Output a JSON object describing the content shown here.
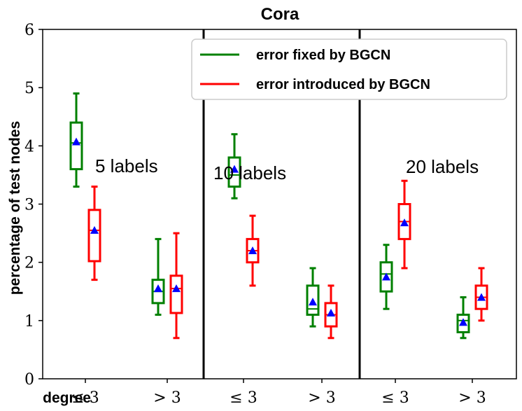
{
  "chart_data": {
    "type": "box",
    "title": "Cora",
    "xlabel_prefix": "degree",
    "ylabel": "percentage of test nodes",
    "ylim": [
      0,
      6
    ],
    "yticks": [
      0,
      1,
      2,
      3,
      4,
      5,
      6
    ],
    "grid": false,
    "legend_placement": "top-right",
    "legend": [
      {
        "label": "error fixed by BGCN",
        "color": "#008000"
      },
      {
        "label": "error introduced by BGCN",
        "color": "#ff0000"
      }
    ],
    "panel_labels": [
      "5 labels",
      "10 labels",
      "20 labels"
    ],
    "category_labels": [
      "≤ 3",
      "> 3",
      "≤ 3",
      "> 3",
      "≤ 3",
      "> 3"
    ],
    "mean_marker_color": "#0000ff",
    "boxes": [
      {
        "panel": 0,
        "category": 0,
        "series": "error fixed by BGCN",
        "whisker_low": 3.3,
        "q1": 3.6,
        "median": 4.05,
        "q3": 4.4,
        "whisker_high": 4.9,
        "mean": 4.07
      },
      {
        "panel": 0,
        "category": 0,
        "series": "error introduced by BGCN",
        "whisker_low": 1.7,
        "q1": 2.02,
        "median": 2.55,
        "q3": 2.9,
        "whisker_high": 3.3,
        "mean": 2.55
      },
      {
        "panel": 0,
        "category": 1,
        "series": "error fixed by BGCN",
        "whisker_low": 1.1,
        "q1": 1.3,
        "median": 1.5,
        "q3": 1.7,
        "whisker_high": 2.4,
        "mean": 1.55
      },
      {
        "panel": 0,
        "category": 1,
        "series": "error introduced by BGCN",
        "whisker_low": 0.7,
        "q1": 1.13,
        "median": 1.55,
        "q3": 1.77,
        "whisker_high": 2.5,
        "mean": 1.55
      },
      {
        "panel": 1,
        "category": 0,
        "series": "error fixed by BGCN",
        "whisker_low": 3.1,
        "q1": 3.3,
        "median": 3.5,
        "q3": 3.8,
        "whisker_high": 4.2,
        "mean": 3.6
      },
      {
        "panel": 1,
        "category": 0,
        "series": "error introduced by BGCN",
        "whisker_low": 1.6,
        "q1": 2.0,
        "median": 2.2,
        "q3": 2.4,
        "whisker_high": 2.8,
        "mean": 2.2
      },
      {
        "panel": 1,
        "category": 1,
        "series": "error fixed by BGCN",
        "whisker_low": 0.9,
        "q1": 1.1,
        "median": 1.2,
        "q3": 1.6,
        "whisker_high": 1.9,
        "mean": 1.32
      },
      {
        "panel": 1,
        "category": 1,
        "series": "error introduced by BGCN",
        "whisker_low": 0.7,
        "q1": 0.9,
        "median": 1.1,
        "q3": 1.3,
        "whisker_high": 1.6,
        "mean": 1.13
      },
      {
        "panel": 2,
        "category": 0,
        "series": "error fixed by BGCN",
        "whisker_low": 1.2,
        "q1": 1.5,
        "median": 1.8,
        "q3": 2.0,
        "whisker_high": 2.3,
        "mean": 1.75
      },
      {
        "panel": 2,
        "category": 0,
        "series": "error introduced by BGCN",
        "whisker_low": 1.9,
        "q1": 2.4,
        "median": 2.7,
        "q3": 3.0,
        "whisker_high": 3.4,
        "mean": 2.68
      },
      {
        "panel": 2,
        "category": 1,
        "series": "error fixed by BGCN",
        "whisker_low": 0.7,
        "q1": 0.8,
        "median": 1.0,
        "q3": 1.1,
        "whisker_high": 1.4,
        "mean": 0.97
      },
      {
        "panel": 2,
        "category": 1,
        "series": "error introduced by BGCN",
        "whisker_low": 1.0,
        "q1": 1.2,
        "median": 1.4,
        "q3": 1.6,
        "whisker_high": 1.9,
        "mean": 1.4
      }
    ]
  }
}
